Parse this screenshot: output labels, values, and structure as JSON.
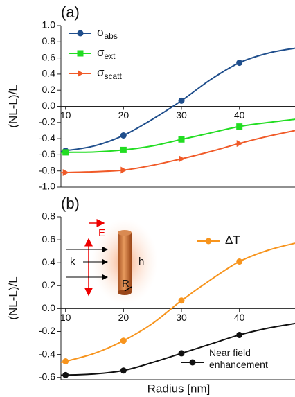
{
  "chart_data": [
    {
      "type": "line",
      "panel_label": "(a)",
      "y_label": "(NL-L)/L",
      "x": [
        9.2,
        10,
        15,
        20,
        25,
        30,
        35,
        40,
        45,
        49.6
      ],
      "marker_x": [
        10,
        20,
        30,
        40
      ],
      "xlim": [
        9.2,
        49.6
      ],
      "xticks": [
        10,
        20,
        30,
        40
      ],
      "ylim": [
        -1.0,
        1.0
      ],
      "yticks": [
        {
          "value": -1.0,
          "label": "-1.0"
        },
        {
          "value": -0.8,
          "label": "-0.8"
        },
        {
          "value": -0.6,
          "label": "-0.6"
        },
        {
          "value": -0.4,
          "label": "-0.4"
        },
        {
          "value": -0.2,
          "label": "-0.2"
        },
        {
          "value": 0.0,
          "label": "0.0"
        },
        {
          "value": 0.2,
          "label": "0.2"
        },
        {
          "value": 0.4,
          "label": "0.4"
        },
        {
          "value": 0.6,
          "label": "0.6"
        },
        {
          "value": 0.8,
          "label": "0.8"
        },
        {
          "value": 1.0,
          "label": "1.0"
        }
      ],
      "series": [
        {
          "name": "σ",
          "name_sub": "abs",
          "color": "#1f4e8c",
          "marker": "circle",
          "values": [
            -0.56,
            -0.55,
            -0.49,
            -0.36,
            -0.16,
            0.07,
            0.33,
            0.54,
            0.66,
            0.72
          ]
        },
        {
          "name": "σ",
          "name_sub": "ext",
          "color": "#22dd22",
          "marker": "square",
          "values": [
            -0.575,
            -0.57,
            -0.565,
            -0.54,
            -0.49,
            -0.41,
            -0.33,
            -0.25,
            -0.2,
            -0.16
          ]
        },
        {
          "name": "σ",
          "name_sub": "scatt",
          "color": "#f05a28",
          "marker": "triangle",
          "values": [
            -0.82,
            -0.82,
            -0.81,
            -0.79,
            -0.73,
            -0.65,
            -0.56,
            -0.46,
            -0.37,
            -0.3
          ]
        }
      ]
    },
    {
      "type": "line",
      "panel_label": "(b)",
      "y_label": "(NL-L)/L",
      "x_label": "Radius [nm]",
      "x": [
        9.2,
        10,
        15,
        20,
        25,
        30,
        35,
        40,
        45,
        49.6
      ],
      "marker_x": [
        10,
        20,
        30,
        40
      ],
      "xlim": [
        9.2,
        49.6
      ],
      "xticks": [
        10,
        20,
        30,
        40
      ],
      "ylim": [
        -0.62,
        0.8
      ],
      "yticks": [
        {
          "value": -0.6,
          "label": "-0.6"
        },
        {
          "value": -0.4,
          "label": "-0.4"
        },
        {
          "value": -0.2,
          "label": "-0.2"
        },
        {
          "value": 0.0,
          "label": "0.0"
        },
        {
          "value": 0.2,
          "label": "0.2"
        },
        {
          "value": 0.4,
          "label": "0.4"
        },
        {
          "value": 0.6,
          "label": "0.6"
        },
        {
          "value": 0.8,
          "label": "0.8"
        }
      ],
      "series": [
        {
          "name": "ΔT",
          "color": "#f7941d",
          "marker": "circle",
          "values": [
            -0.47,
            -0.46,
            -0.39,
            -0.28,
            -0.13,
            0.07,
            0.25,
            0.41,
            0.51,
            0.57
          ]
        },
        {
          "name": "Near field",
          "name_line2": "enhancement",
          "color": "#111111",
          "marker": "circle",
          "values": [
            -0.58,
            -0.58,
            -0.57,
            -0.54,
            -0.47,
            -0.39,
            -0.31,
            -0.23,
            -0.17,
            -0.13
          ]
        }
      ],
      "annotations": {
        "E": "E",
        "k": "k",
        "h": "h",
        "R": "R"
      }
    }
  ]
}
